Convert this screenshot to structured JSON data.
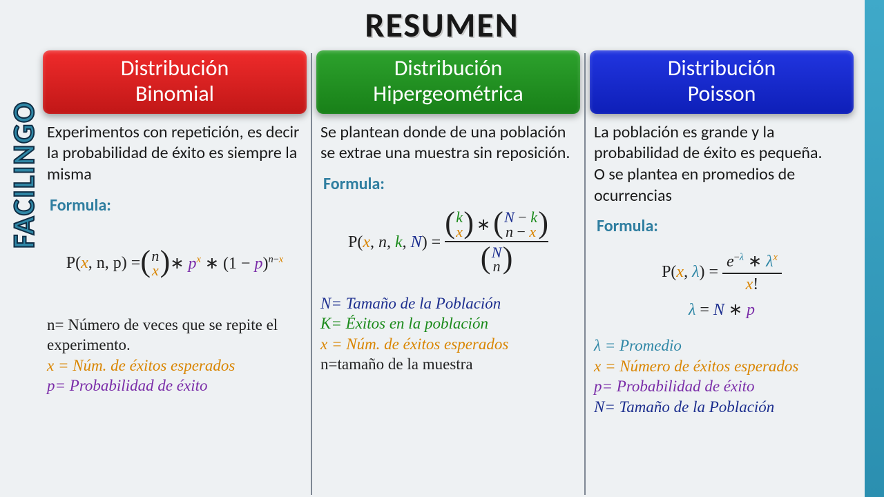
{
  "page": {
    "title": "RESUMEN",
    "brand": "FACILINGO",
    "background_color": "#eef1f3",
    "right_band_color": "#3fa9c9",
    "title_fontsize": 50
  },
  "columns": [
    {
      "id": "binomial",
      "header_color": "red",
      "header_bg": "#c11717",
      "title_line1": "Distribución",
      "title_line2": "Binomial",
      "description": "Experimentos con repetición, es decir la probabilidad de éxito es siempre la misma",
      "formula_label": "Formula:",
      "legend": [
        {
          "color": "#222222",
          "text": "n= Número de veces que se repite el experimento."
        },
        {
          "color": "#d98500",
          "text": "x = Núm. de éxitos esperados"
        },
        {
          "color": "#7a2ca8",
          "text": "p= Probabilidad de éxito"
        }
      ]
    },
    {
      "id": "hypergeometric",
      "header_color": "green",
      "header_bg": "#188018",
      "title_line1": "Distribución",
      "title_line2": "Hipergeométrica",
      "description": "Se plantean donde de una población se extrae una muestra sin reposición.",
      "formula_label": "Formula:",
      "legend": [
        {
          "color": "#1d2f8f",
          "text": "N= Tamaño de la Población"
        },
        {
          "color": "#1a8a1a",
          "text": "K= Éxitos en la población"
        },
        {
          "color": "#d98500",
          "text": "x = Núm. de éxitos esperados"
        },
        {
          "color": "#222222",
          "text": "n=tamaño de la muestra"
        }
      ]
    },
    {
      "id": "poisson",
      "header_color": "blue",
      "header_bg": "#0e1fb8",
      "title_line1": "Distribución",
      "title_line2": "Poisson",
      "description": "La población es grande y la probabilidad de éxito es pequeña.\nO se plantea en promedios de ocurrencias",
      "formula_label": "Formula:",
      "legend": [
        {
          "color": "#2f87a6",
          "text": "λ = Promedio"
        },
        {
          "color": "#d98500",
          "text": "x = Número de éxitos esperados"
        },
        {
          "color": "#7a2ca8",
          "text": "p= Probabilidad de éxito"
        },
        {
          "color": "#1d2f8f",
          "text": "N= Tamaño de la Población"
        }
      ]
    }
  ],
  "formula_colors": {
    "x": "#d98500",
    "n_small": "#222222",
    "N_big": "#1d2f8f",
    "k": "#1a8a1a",
    "p": "#7a2ca8",
    "lambda": "#2f87a6"
  },
  "typography": {
    "body_font": "Segoe UI / Gill Sans",
    "math_font": "Cambria Math",
    "header_fontsize": 32,
    "desc_fontsize": 24,
    "legend_fontsize": 23
  }
}
